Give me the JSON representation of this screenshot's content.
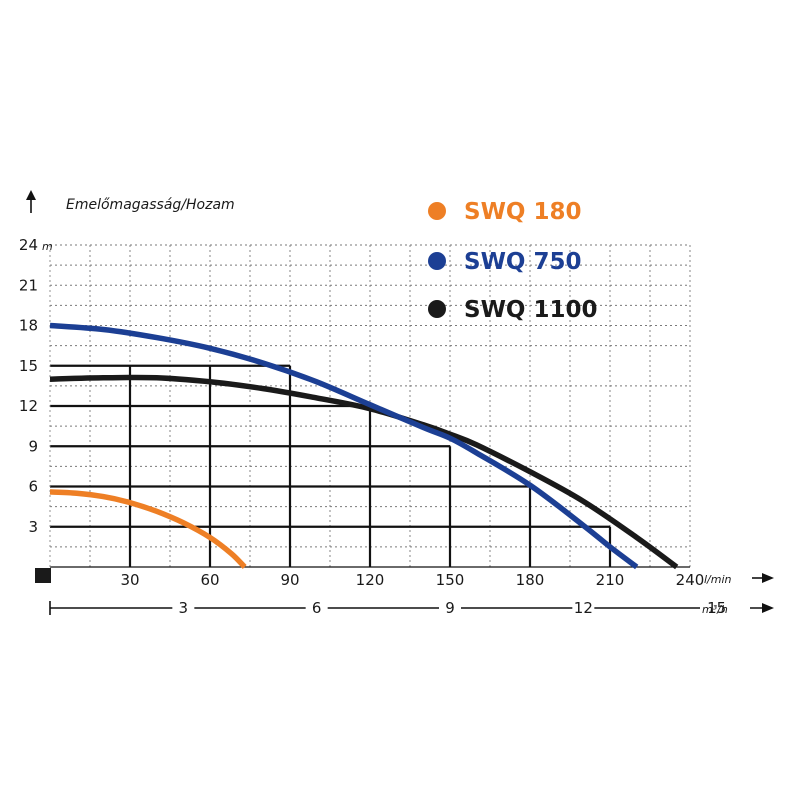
{
  "chart_data": {
    "type": "line",
    "title": "Emelőmagasság/Hozam",
    "y_unit": "m",
    "x_unit": "l/min",
    "x2_unit": "m³/h",
    "xlim": [
      0,
      240
    ],
    "ylim": [
      0,
      24
    ],
    "grid": true,
    "legend_position": "top-right",
    "y_ticks": [
      "3",
      "6",
      "9",
      "12",
      "15",
      "18",
      "21",
      "24"
    ],
    "x_ticks": [
      "30",
      "60",
      "90",
      "120",
      "150",
      "180",
      "210",
      "240"
    ],
    "x2_ticks": [
      "3",
      "6",
      "9",
      "12",
      "15"
    ],
    "series": [
      {
        "name": "SWQ 180",
        "color": "#ee7f25",
        "x": [
          0,
          10,
          20,
          30,
          40,
          50,
          60,
          68,
          73
        ],
        "y": [
          5.6,
          5.5,
          5.25,
          4.8,
          4.15,
          3.3,
          2.2,
          1.0,
          0
        ]
      },
      {
        "name": "SWQ 750",
        "color": "#1c3f94",
        "x": [
          0,
          20,
          40,
          60,
          80,
          100,
          120,
          140,
          150,
          160,
          180,
          200,
          210,
          220
        ],
        "y": [
          18,
          17.7,
          17.1,
          16.3,
          15.2,
          13.8,
          12.1,
          10.4,
          9.6,
          8.5,
          6.1,
          3.1,
          1.5,
          0
        ]
      },
      {
        "name": "SWQ 1100",
        "color": "#1a1a1a",
        "x": [
          0,
          20,
          40,
          60,
          80,
          100,
          120,
          140,
          150,
          160,
          180,
          200,
          220,
          235
        ],
        "y": [
          14,
          14.1,
          14.1,
          13.8,
          13.3,
          12.6,
          11.8,
          10.6,
          9.9,
          9.1,
          7.1,
          4.9,
          2.2,
          0
        ]
      }
    ]
  }
}
